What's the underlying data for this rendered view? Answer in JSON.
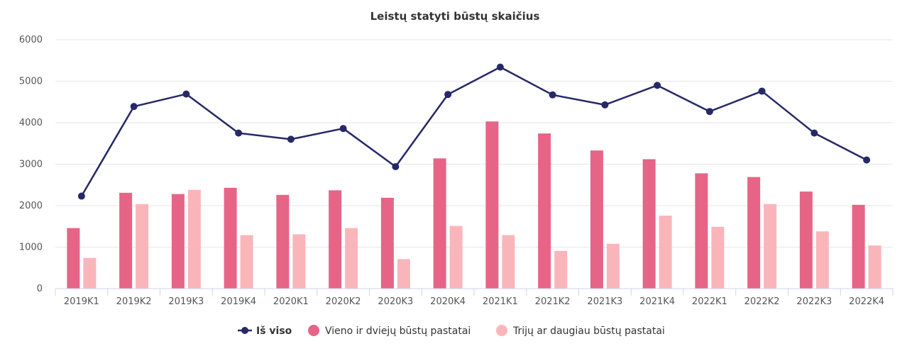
{
  "chart_data": {
    "type": "bar",
    "title": "Leistų statyti būstų skaičius",
    "categories": [
      "2019K1",
      "2019K2",
      "2019K3",
      "2019K4",
      "2020K1",
      "2020K2",
      "2020K3",
      "2020K4",
      "2021K1",
      "2021K2",
      "2021K3",
      "2021K4",
      "2022K1",
      "2022K2",
      "2022K3",
      "2022K4"
    ],
    "ylim": [
      0,
      6000
    ],
    "yticks": [
      0,
      1000,
      2000,
      3000,
      4000,
      5000,
      6000
    ],
    "grid": true,
    "legend_position": "bottom",
    "series": [
      {
        "name": "Iš viso",
        "type": "line",
        "color": "#262867",
        "values": [
          2230,
          4390,
          4690,
          3750,
          3600,
          3860,
          2940,
          4680,
          5340,
          4670,
          4430,
          4900,
          4270,
          4760,
          3750,
          3100
        ]
      },
      {
        "name": "Vieno ir dviejų būstų pastatai",
        "type": "bar",
        "color": "#e66587",
        "values": [
          1460,
          2310,
          2280,
          2430,
          2260,
          2370,
          2190,
          3140,
          4030,
          3740,
          3330,
          3120,
          2780,
          2690,
          2340,
          2020
        ]
      },
      {
        "name": "Trijų ar daugiau būstų pastatai",
        "type": "bar",
        "color": "#fab5bb",
        "values": [
          740,
          2040,
          2380,
          1290,
          1310,
          1460,
          710,
          1510,
          1290,
          910,
          1080,
          1760,
          1490,
          2040,
          1380,
          1040
        ]
      }
    ]
  }
}
